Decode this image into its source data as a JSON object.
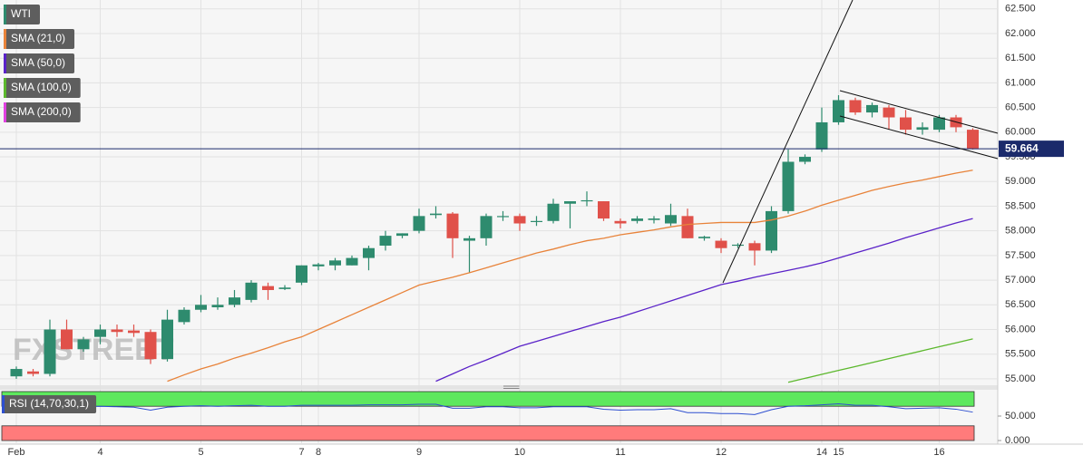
{
  "chart_data": [
    {
      "type": "candlestick",
      "name": "WTI",
      "up_color": "#2e8b6e",
      "down_color": "#e0514a",
      "grid": true,
      "watermark": "FXSTREET",
      "last_price": 59.664,
      "last_price_color": "#1b2a6b",
      "categories": [
        "Feb",
        null,
        null,
        null,
        null,
        "4",
        null,
        null,
        null,
        null,
        null,
        "5",
        null,
        null,
        null,
        null,
        null,
        "7",
        "8",
        null,
        null,
        null,
        null,
        null,
        "9",
        null,
        null,
        null,
        null,
        null,
        "10",
        null,
        null,
        null,
        null,
        null,
        "11",
        null,
        null,
        null,
        null,
        null,
        "12",
        null,
        null,
        null,
        null,
        null,
        "14",
        "15",
        null,
        null,
        null,
        null,
        null,
        "16",
        null,
        null
      ],
      "open": [
        55.05,
        55.15,
        55.1,
        56.0,
        55.6,
        55.85,
        56.0,
        55.98,
        55.95,
        55.4,
        56.15,
        56.4,
        56.45,
        56.5,
        56.6,
        56.88,
        56.82,
        56.95,
        57.28,
        57.3,
        57.3,
        57.45,
        57.7,
        57.9,
        58.0,
        58.32,
        58.35,
        57.8,
        57.85,
        58.28,
        58.3,
        58.2,
        58.2,
        58.55,
        58.6,
        58.6,
        58.2,
        58.2,
        58.22,
        58.15,
        58.3,
        57.85,
        57.8,
        57.7,
        57.75,
        57.6,
        58.4,
        59.4,
        59.65,
        60.2,
        60.65,
        60.4,
        60.5,
        60.3,
        60.05,
        60.05,
        60.3,
        60.05
      ],
      "high": [
        55.25,
        55.2,
        56.2,
        56.2,
        55.85,
        56.1,
        56.1,
        56.1,
        56.0,
        56.4,
        56.45,
        56.7,
        56.65,
        56.8,
        57.0,
        56.95,
        56.9,
        57.3,
        57.35,
        57.45,
        57.5,
        57.7,
        58.0,
        57.95,
        58.45,
        58.5,
        58.38,
        57.9,
        58.35,
        58.4,
        58.35,
        58.3,
        58.65,
        58.6,
        58.8,
        58.6,
        58.25,
        58.3,
        58.3,
        58.55,
        58.45,
        57.9,
        57.85,
        57.75,
        57.8,
        58.5,
        59.65,
        59.55,
        60.5,
        60.75,
        60.7,
        60.6,
        60.55,
        60.45,
        60.2,
        60.35,
        60.35,
        60.08
      ],
      "low": [
        55.0,
        55.05,
        55.05,
        55.6,
        55.55,
        55.7,
        55.85,
        55.85,
        55.3,
        55.35,
        56.1,
        56.35,
        56.4,
        56.45,
        56.55,
        56.6,
        56.8,
        56.9,
        57.2,
        57.2,
        57.3,
        57.2,
        57.6,
        57.85,
        57.95,
        58.25,
        57.45,
        57.15,
        57.7,
        58.2,
        58.0,
        58.1,
        58.15,
        58.05,
        58.5,
        58.2,
        58.05,
        58.15,
        58.15,
        58.1,
        57.85,
        57.8,
        57.55,
        57.65,
        57.3,
        57.55,
        58.35,
        59.35,
        59.6,
        60.15,
        60.35,
        60.3,
        60.05,
        59.95,
        59.95,
        60.0,
        60.0,
        59.65
      ],
      "close": [
        55.2,
        55.1,
        56.0,
        55.6,
        55.8,
        56.0,
        55.95,
        55.93,
        55.4,
        56.2,
        56.4,
        56.5,
        56.5,
        56.65,
        56.95,
        56.8,
        56.85,
        57.3,
        57.32,
        57.4,
        57.45,
        57.65,
        57.9,
        57.95,
        58.3,
        58.35,
        57.85,
        57.85,
        58.3,
        58.3,
        58.15,
        58.2,
        58.55,
        58.6,
        58.62,
        58.25,
        58.15,
        58.25,
        58.25,
        58.32,
        57.85,
        57.88,
        57.65,
        57.72,
        57.6,
        58.4,
        59.4,
        59.5,
        60.2,
        60.65,
        60.4,
        60.55,
        60.3,
        60.05,
        60.1,
        60.3,
        60.1,
        59.66
      ],
      "series": [
        {
          "name": "SMA (21,0)",
          "color": "#e8833a",
          "values": [
            null,
            null,
            null,
            null,
            null,
            null,
            null,
            null,
            null,
            54.95,
            55.08,
            55.2,
            55.3,
            55.42,
            55.52,
            55.63,
            55.75,
            55.85,
            56.0,
            56.15,
            56.3,
            56.45,
            56.6,
            56.75,
            56.9,
            56.98,
            57.06,
            57.15,
            57.25,
            57.35,
            57.45,
            57.55,
            57.63,
            57.72,
            57.8,
            57.85,
            57.92,
            57.97,
            58.02,
            58.08,
            58.13,
            58.15,
            58.17,
            58.17,
            58.17,
            58.22,
            58.3,
            58.4,
            58.52,
            58.62,
            58.72,
            58.82,
            58.9,
            58.97,
            59.03,
            59.1,
            59.17,
            59.23
          ]
        },
        {
          "name": "SMA (50,0)",
          "color": "#5a22c8",
          "values": [
            null,
            null,
            null,
            null,
            null,
            null,
            null,
            null,
            null,
            null,
            null,
            null,
            null,
            null,
            null,
            null,
            null,
            null,
            null,
            null,
            null,
            null,
            null,
            null,
            null,
            54.95,
            55.1,
            55.25,
            55.38,
            55.52,
            55.66,
            55.76,
            55.86,
            55.96,
            56.06,
            56.16,
            56.25,
            56.36,
            56.47,
            56.58,
            56.69,
            56.8,
            56.91,
            56.98,
            57.06,
            57.13,
            57.2,
            57.27,
            57.35,
            57.45,
            57.55,
            57.65,
            57.75,
            57.86,
            57.96,
            58.06,
            58.16,
            58.25
          ]
        },
        {
          "name": "SMA (100,0)",
          "color": "#5cb82d",
          "values": [
            null,
            null,
            null,
            null,
            null,
            null,
            null,
            null,
            null,
            null,
            null,
            null,
            null,
            null,
            null,
            null,
            null,
            null,
            null,
            null,
            null,
            null,
            null,
            null,
            null,
            null,
            null,
            null,
            null,
            null,
            null,
            null,
            null,
            null,
            null,
            null,
            null,
            null,
            null,
            null,
            null,
            null,
            null,
            null,
            null,
            null,
            54.93,
            55.01,
            55.09,
            55.17,
            55.25,
            55.33,
            55.41,
            55.49,
            55.57,
            55.65,
            55.73,
            55.81
          ]
        },
        {
          "name": "SMA (200,0)",
          "color": "#e040e0",
          "values": [
            null,
            null,
            null,
            null,
            null,
            null,
            null,
            null,
            null,
            null,
            null,
            null,
            null,
            null,
            null,
            null,
            null,
            null,
            null,
            null,
            null,
            null,
            null,
            null,
            null,
            null,
            null,
            null,
            null,
            null,
            null,
            null,
            null,
            null,
            null,
            null,
            null,
            null,
            null,
            null,
            null,
            null,
            null,
            null,
            null,
            null,
            null,
            null,
            null,
            null,
            null,
            null,
            null,
            null,
            null,
            null,
            null,
            null
          ]
        }
      ],
      "ylim": [
        54.87,
        62.68
      ],
      "yticks": [
        {
          "value": 55.0,
          "label": "55.000"
        },
        {
          "value": 55.5,
          "label": "55.500"
        },
        {
          "value": 56.0,
          "label": "56.000"
        },
        {
          "value": 56.5,
          "label": "56.500"
        },
        {
          "value": 57.0,
          "label": "57.000"
        },
        {
          "value": 57.5,
          "label": "57.500"
        },
        {
          "value": 58.0,
          "label": "58.000"
        },
        {
          "value": 58.5,
          "label": "58.500"
        },
        {
          "value": 59.0,
          "label": "59.000"
        },
        {
          "value": 59.5,
          "label": "59.500"
        },
        {
          "value": 60.0,
          "label": "60.000"
        },
        {
          "value": 60.5,
          "label": "60.500"
        },
        {
          "value": 61.0,
          "label": "61.000"
        },
        {
          "value": 61.5,
          "label": "61.500"
        },
        {
          "value": 62.0,
          "label": "62.000"
        },
        {
          "value": 62.5,
          "label": "62.500"
        }
      ]
    },
    {
      "type": "line",
      "name": "RSI (14,70,30,1)",
      "color": "#2e4fd0",
      "bands": [
        {
          "from": 70,
          "to": 100,
          "color": "#5ee85e"
        },
        {
          "from": 0,
          "to": 30,
          "color": "#ff7b7b"
        }
      ],
      "values": [
        68,
        67,
        70,
        68,
        69,
        70,
        69,
        68,
        62,
        68,
        70,
        71,
        70,
        71,
        72,
        70,
        70,
        72,
        72,
        72,
        72,
        73,
        73,
        73,
        74,
        74,
        66,
        66,
        69,
        69,
        67,
        67,
        69,
        69,
        69,
        64,
        62,
        63,
        63,
        65,
        57,
        57,
        55,
        55,
        53,
        63,
        70,
        71,
        73,
        75,
        72,
        72,
        69,
        65,
        66,
        67,
        64,
        58
      ],
      "ylim": [
        0,
        100
      ],
      "yticks": [
        {
          "value": 50,
          "label": "50.000"
        },
        {
          "value": 0,
          "label": "0.000"
        }
      ]
    }
  ]
}
